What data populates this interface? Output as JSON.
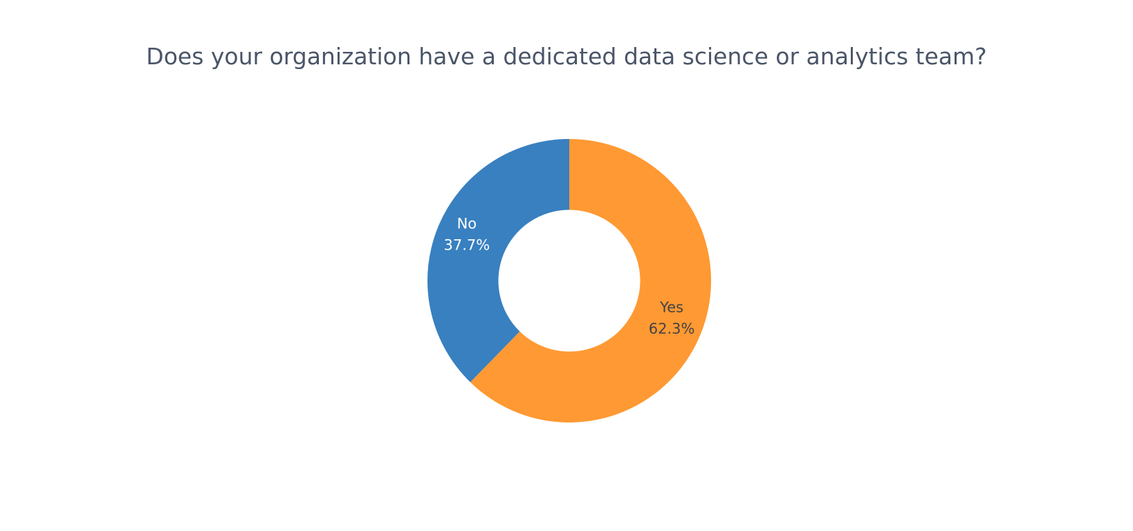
{
  "chart_data": {
    "type": "pie",
    "hole": 0.5,
    "title": "Does your organization have a dedicated data science or analytics team?",
    "slices": [
      {
        "label": "Yes",
        "value": 62.3,
        "percent_text": "62.3%",
        "color": "#ff9933",
        "text_color": "#444444"
      },
      {
        "label": "No",
        "value": 37.7,
        "percent_text": "37.7%",
        "color": "#3880c0",
        "text_color": "#ffffff"
      }
    ],
    "direction": "clockwise",
    "start": "top"
  }
}
